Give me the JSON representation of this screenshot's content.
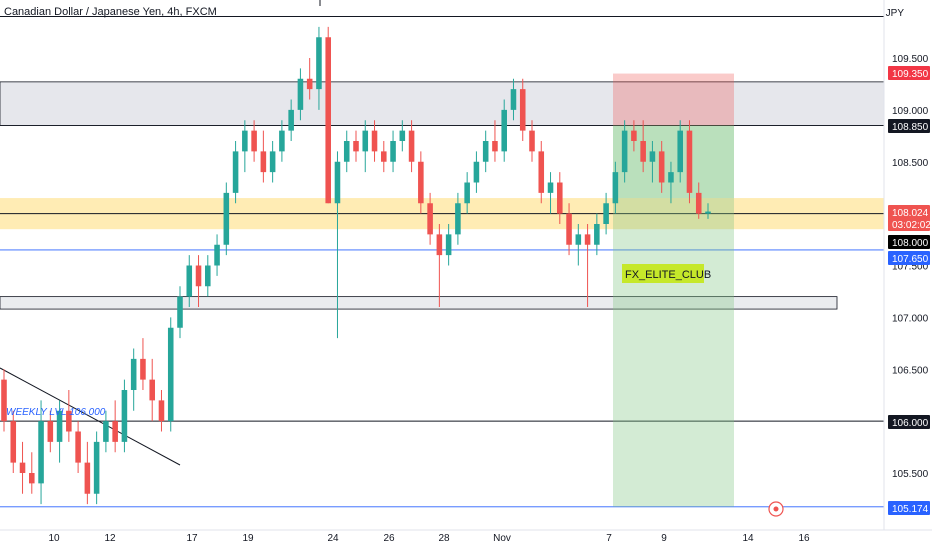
{
  "header": {
    "title": "Canadian Dollar / Japanese Yen, 4h, FXCM",
    "currency": "JPY"
  },
  "colors": {
    "up": "#26a69a",
    "down": "#ef5350",
    "grid_box": "#d1d4dc",
    "yellow_zone": "#ffe082",
    "blue_line": "#2962ff",
    "stop_zone": "#ef9a9a",
    "target_zone": "#c8e6c9",
    "target_zone_strong": "#81c784",
    "label_green": "#c6e82a"
  },
  "chart_data": {
    "type": "candlestick",
    "symbol": "Canadian Dollar / Japanese Yen",
    "timeframe": "4h",
    "exchange": "FXCM",
    "ylim": [
      105.15,
      109.95
    ],
    "y_ticks": [
      109.5,
      109.0,
      108.5,
      107.5,
      107.0,
      106.5,
      105.5
    ],
    "y_tick_labels": [
      "109.500",
      "109.000",
      "108.500",
      "107.500",
      "107.000",
      "106.500",
      "105.500"
    ],
    "x_tick_labels": [
      "10",
      "12",
      "17",
      "19",
      "24",
      "26",
      "28",
      "Nov",
      "7",
      "9",
      "14",
      "16"
    ],
    "price_labels": [
      {
        "text": "109.350",
        "kind": "stop"
      },
      {
        "text": "108.850",
        "kind": "dark"
      },
      {
        "text": "108.024",
        "sub": "03:02:02",
        "kind": "current"
      },
      {
        "text": "108.000",
        "kind": "black"
      },
      {
        "text": "107.650",
        "kind": "blue"
      },
      {
        "text": "106.000",
        "kind": "dark"
      },
      {
        "text": "105.174",
        "kind": "blue"
      }
    ],
    "levels": [
      {
        "price": 109.9,
        "style": "black"
      },
      {
        "price": 108.85,
        "style": "black"
      },
      {
        "price": 108.0,
        "style": "black"
      },
      {
        "price": 107.65,
        "style": "blue"
      },
      {
        "price": 106.0,
        "style": "black"
      },
      {
        "price": 105.174,
        "style": "blue"
      }
    ],
    "zones": [
      {
        "name": "supply-zone",
        "top": 109.27,
        "bottom": 108.85
      },
      {
        "name": "demand-zone",
        "top": 108.15,
        "bottom": 107.85
      },
      {
        "name": "lower-zone",
        "top": 107.2,
        "bottom": 107.08
      }
    ],
    "trade": {
      "stop": 109.35,
      "entry": 108.85,
      "target": 105.174,
      "label": "FX_ELITE_CLUB"
    },
    "annotations": [
      {
        "text": "WEEKLY LVL 106.000",
        "price": 106.1
      }
    ],
    "ohlc": [
      [
        106.4,
        106.5,
        105.9,
        106.0
      ],
      [
        106.0,
        106.1,
        105.5,
        105.6
      ],
      [
        105.6,
        105.8,
        105.3,
        105.5
      ],
      [
        105.5,
        105.7,
        105.3,
        105.4
      ],
      [
        105.4,
        106.2,
        105.2,
        106.0
      ],
      [
        106.0,
        106.1,
        105.7,
        105.8
      ],
      [
        105.8,
        106.2,
        105.6,
        106.1
      ],
      [
        106.1,
        106.3,
        105.8,
        105.9
      ],
      [
        105.9,
        106.0,
        105.5,
        105.6
      ],
      [
        105.6,
        105.8,
        105.2,
        105.3
      ],
      [
        105.3,
        105.9,
        105.2,
        105.8
      ],
      [
        105.8,
        106.1,
        105.7,
        106.0
      ],
      [
        106.0,
        106.2,
        105.7,
        105.8
      ],
      [
        105.8,
        106.4,
        105.7,
        106.3
      ],
      [
        106.3,
        106.7,
        106.1,
        106.6
      ],
      [
        106.6,
        106.8,
        106.3,
        106.4
      ],
      [
        106.4,
        106.6,
        106.0,
        106.2
      ],
      [
        106.2,
        106.3,
        105.9,
        106.0
      ],
      [
        106.0,
        107.0,
        105.9,
        106.9
      ],
      [
        106.9,
        107.3,
        106.8,
        107.2
      ],
      [
        107.2,
        107.6,
        107.1,
        107.5
      ],
      [
        107.5,
        107.6,
        107.1,
        107.3
      ],
      [
        107.3,
        107.6,
        107.2,
        107.5
      ],
      [
        107.5,
        107.8,
        107.4,
        107.7
      ],
      [
        107.7,
        108.3,
        107.6,
        108.2
      ],
      [
        108.2,
        108.7,
        108.1,
        108.6
      ],
      [
        108.6,
        108.9,
        108.4,
        108.8
      ],
      [
        108.8,
        108.9,
        108.5,
        108.6
      ],
      [
        108.6,
        108.8,
        108.3,
        108.4
      ],
      [
        108.4,
        108.7,
        108.3,
        108.6
      ],
      [
        108.6,
        108.9,
        108.5,
        108.8
      ],
      [
        108.8,
        109.1,
        108.7,
        109.0
      ],
      [
        109.0,
        109.4,
        108.9,
        109.3
      ],
      [
        109.3,
        109.5,
        109.1,
        109.2
      ],
      [
        109.2,
        109.8,
        109.0,
        109.7
      ],
      [
        109.7,
        109.8,
        108.1,
        108.1
      ],
      [
        108.1,
        108.6,
        106.8,
        108.5
      ],
      [
        108.5,
        108.8,
        108.4,
        108.7
      ],
      [
        108.7,
        108.8,
        108.5,
        108.6
      ],
      [
        108.6,
        108.9,
        108.4,
        108.8
      ],
      [
        108.8,
        108.9,
        108.5,
        108.6
      ],
      [
        108.6,
        108.7,
        108.4,
        108.5
      ],
      [
        108.5,
        108.8,
        108.4,
        108.7
      ],
      [
        108.7,
        108.9,
        108.6,
        108.8
      ],
      [
        108.8,
        108.9,
        108.4,
        108.5
      ],
      [
        108.5,
        108.6,
        108.0,
        108.1
      ],
      [
        108.1,
        108.2,
        107.7,
        107.8
      ],
      [
        107.8,
        107.9,
        107.1,
        107.6
      ],
      [
        107.6,
        107.9,
        107.5,
        107.8
      ],
      [
        107.8,
        108.2,
        107.7,
        108.1
      ],
      [
        108.1,
        108.4,
        108.0,
        108.3
      ],
      [
        108.3,
        108.6,
        108.2,
        108.5
      ],
      [
        108.5,
        108.8,
        108.4,
        108.7
      ],
      [
        108.7,
        108.9,
        108.5,
        108.6
      ],
      [
        108.6,
        109.1,
        108.5,
        109.0
      ],
      [
        109.0,
        109.3,
        108.9,
        109.2
      ],
      [
        109.2,
        109.3,
        108.7,
        108.8
      ],
      [
        108.8,
        108.9,
        108.5,
        108.6
      ],
      [
        108.6,
        108.7,
        108.1,
        108.2
      ],
      [
        108.2,
        108.4,
        108.0,
        108.3
      ],
      [
        108.3,
        108.4,
        107.9,
        108.0
      ],
      [
        108.0,
        108.1,
        107.6,
        107.7
      ],
      [
        107.7,
        107.9,
        107.5,
        107.8
      ],
      [
        107.8,
        107.9,
        107.1,
        107.7
      ],
      [
        107.7,
        108.0,
        107.6,
        107.9
      ],
      [
        107.9,
        108.2,
        107.8,
        108.1
      ],
      [
        108.1,
        108.5,
        108.0,
        108.4
      ],
      [
        108.4,
        108.9,
        108.3,
        108.8
      ],
      [
        108.8,
        108.9,
        108.6,
        108.7
      ],
      [
        108.7,
        108.9,
        108.4,
        108.5
      ],
      [
        108.5,
        108.7,
        108.3,
        108.6
      ],
      [
        108.6,
        108.7,
        108.2,
        108.3
      ],
      [
        108.3,
        108.5,
        108.1,
        108.4
      ],
      [
        108.4,
        108.9,
        108.3,
        108.8
      ],
      [
        108.8,
        108.9,
        108.1,
        108.2
      ],
      [
        108.2,
        108.3,
        107.95,
        108.0
      ],
      [
        108.0,
        108.1,
        107.95,
        108.02
      ]
    ]
  }
}
